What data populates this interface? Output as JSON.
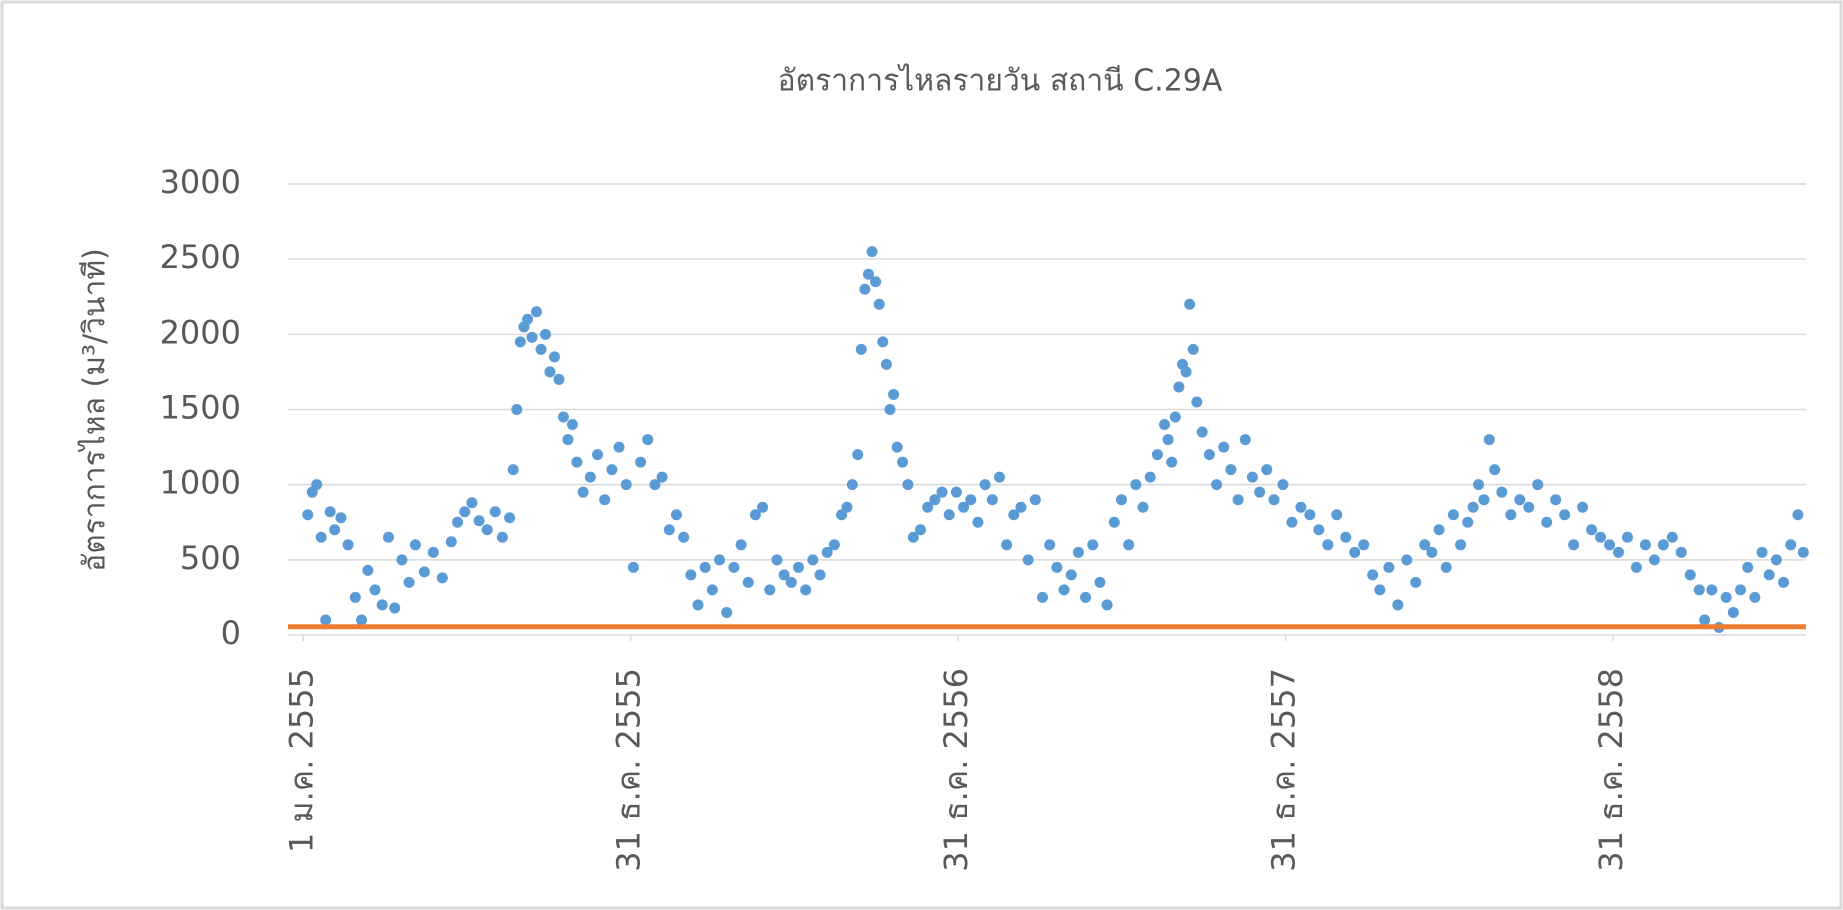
{
  "chart_data": {
    "type": "scatter",
    "title": "อัตราการไหลรายวัน สถานี C.29A",
    "y_label": "อัตราการไหล (ม³/วินาที)",
    "color": "#5b9bd5",
    "x": [
      5,
      10,
      15,
      20,
      25,
      30,
      35,
      42,
      50,
      58,
      65,
      72,
      80,
      88,
      95,
      102,
      110,
      118,
      125,
      135,
      145,
      155,
      165,
      172,
      180,
      188,
      196,
      205,
      214,
      222,
      230,
      234,
      238,
      242,
      246,
      250,
      255,
      260,
      265,
      270,
      275,
      280,
      285,
      290,
      295,
      300,
      305,
      312,
      320,
      328,
      336,
      344,
      352,
      360,
      368,
      376,
      384,
      392,
      400,
      408,
      416,
      424,
      432,
      440,
      448,
      456,
      464,
      472,
      480,
      488,
      496,
      504,
      512,
      520,
      528,
      536,
      544,
      552,
      560,
      568,
      576,
      584,
      592,
      600,
      606,
      612,
      618,
      622,
      626,
      630,
      634,
      638,
      642,
      646,
      650,
      654,
      658,
      662,
      668,
      674,
      680,
      688,
      696,
      704,
      712,
      720,
      728,
      736,
      744,
      752,
      760,
      768,
      776,
      784,
      792,
      800,
      808,
      816,
      824,
      832,
      840,
      848,
      856,
      864,
      872,
      880,
      888,
      896,
      904,
      912,
      920,
      928,
      936,
      944,
      952,
      960,
      964,
      968,
      972,
      976,
      980,
      984,
      988,
      992,
      996,
      1002,
      1010,
      1018,
      1026,
      1034,
      1042,
      1050,
      1058,
      1066,
      1074,
      1082,
      1092,
      1102,
      1112,
      1122,
      1132,
      1142,
      1152,
      1162,
      1172,
      1182,
      1192,
      1200,
      1210,
      1220,
      1230,
      1240,
      1250,
      1258,
      1266,
      1274,
      1282,
      1290,
      1298,
      1304,
      1310,
      1316,
      1322,
      1328,
      1336,
      1346,
      1356,
      1366,
      1376,
      1386,
      1396,
      1406,
      1416,
      1426,
      1436,
      1446,
      1456,
      1466,
      1476,
      1486,
      1496,
      1506,
      1516,
      1526,
      1536,
      1546,
      1556,
      1562,
      1570,
      1578,
      1586,
      1594,
      1602,
      1610,
      1618,
      1626,
      1634,
      1642,
      1650,
      1658,
      1666,
      1672
    ],
    "values": [
      800,
      950,
      1000,
      650,
      100,
      820,
      700,
      780,
      600,
      250,
      100,
      430,
      300,
      200,
      650,
      180,
      500,
      350,
      600,
      420,
      550,
      380,
      620,
      750,
      820,
      880,
      760,
      700,
      820,
      650,
      780,
      1100,
      1500,
      1950,
      2050,
      2100,
      1980,
      2150,
      1900,
      2000,
      1750,
      1850,
      1700,
      1450,
      1300,
      1400,
      1150,
      950,
      1050,
      1200,
      900,
      1100,
      1250,
      1000,
      450,
      1150,
      1300,
      1000,
      1050,
      700,
      800,
      650,
      400,
      200,
      450,
      300,
      500,
      150,
      450,
      600,
      350,
      800,
      850,
      300,
      500,
      400,
      350,
      450,
      300,
      500,
      400,
      550,
      600,
      800,
      850,
      1000,
      1200,
      1900,
      2300,
      2400,
      2550,
      2350,
      2200,
      1950,
      1800,
      1500,
      1600,
      1250,
      1150,
      1000,
      650,
      700,
      850,
      900,
      950,
      800,
      950,
      850,
      900,
      750,
      1000,
      900,
      1050,
      600,
      800,
      850,
      500,
      900,
      250,
      600,
      450,
      300,
      400,
      550,
      250,
      600,
      350,
      200,
      750,
      900,
      600,
      1000,
      850,
      1050,
      1200,
      1400,
      1300,
      1150,
      1450,
      1650,
      1800,
      1750,
      2200,
      1900,
      1550,
      1350,
      1200,
      1000,
      1250,
      1100,
      900,
      1300,
      1050,
      950,
      1100,
      900,
      1000,
      750,
      850,
      800,
      700,
      600,
      800,
      650,
      550,
      600,
      400,
      300,
      450,
      200,
      500,
      350,
      600,
      550,
      700,
      450,
      800,
      600,
      750,
      850,
      1000,
      900,
      1300,
      1100,
      950,
      800,
      900,
      850,
      1000,
      750,
      900,
      800,
      600,
      850,
      700,
      650,
      600,
      550,
      650,
      450,
      600,
      500,
      600,
      650,
      550,
      400,
      300,
      100,
      300,
      50,
      250,
      150,
      300,
      450,
      250,
      550,
      400,
      500,
      350,
      600,
      800,
      550
    ],
    "reference_line": {
      "value": 55,
      "color": "#ed7d31"
    },
    "xlim": [
      -17,
      1675
    ],
    "xticks": [
      {
        "value": 0,
        "label": "1 ม.ค. 2555"
      },
      {
        "value": 365,
        "label": "31 ธ.ค. 2555"
      },
      {
        "value": 730,
        "label": "31 ธ.ค. 2556"
      },
      {
        "value": 1095,
        "label": "31 ธ.ค. 2557"
      },
      {
        "value": 1460,
        "label": "31 ธ.ค. 2558"
      }
    ],
    "ylim": [
      0,
      3000
    ],
    "yticks": [
      0,
      500,
      1000,
      1500,
      2000,
      2500,
      3000
    ],
    "grid": true
  }
}
